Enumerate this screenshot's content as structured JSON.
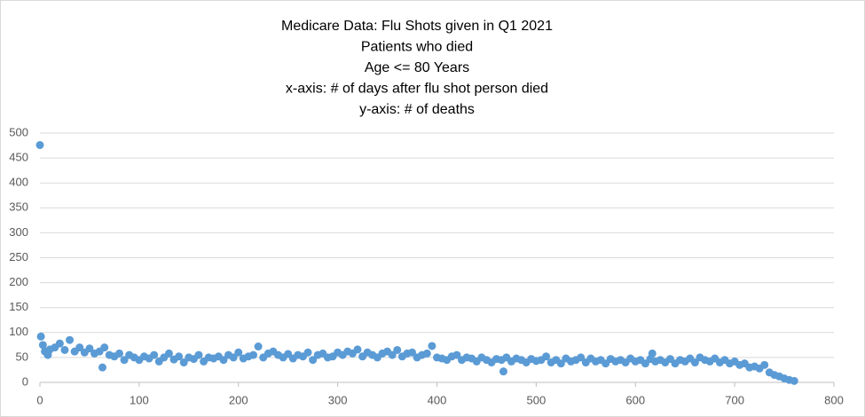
{
  "chart_data": {
    "type": "scatter",
    "title": [
      "Medicare Data:  Flu Shots given in Q1 2021",
      "Patients who died",
      "Age <= 80 Years",
      "x-axis: # of days after flu shot person died",
      "y-axis: # of deaths"
    ],
    "color": "#5b9bd5",
    "grid": true,
    "xlim": [
      0,
      800
    ],
    "xticks": [
      0,
      100,
      200,
      300,
      400,
      500,
      600,
      700,
      800
    ],
    "ylim": [
      0,
      500
    ],
    "yticks": [
      0,
      50,
      100,
      150,
      200,
      250,
      300,
      350,
      400,
      450,
      500
    ],
    "x": [
      0,
      1,
      3,
      5,
      8,
      10,
      15,
      20,
      25,
      30,
      35,
      40,
      45,
      50,
      55,
      60,
      63,
      65,
      70,
      75,
      80,
      85,
      90,
      95,
      100,
      105,
      110,
      115,
      120,
      125,
      130,
      135,
      140,
      145,
      150,
      155,
      160,
      165,
      170,
      175,
      180,
      185,
      190,
      195,
      200,
      205,
      210,
      215,
      220,
      225,
      230,
      235,
      240,
      245,
      250,
      255,
      260,
      265,
      270,
      275,
      280,
      285,
      290,
      295,
      300,
      305,
      310,
      315,
      320,
      325,
      330,
      335,
      340,
      345,
      350,
      355,
      360,
      365,
      370,
      375,
      380,
      385,
      390,
      395,
      400,
      405,
      410,
      415,
      420,
      425,
      430,
      435,
      440,
      445,
      450,
      455,
      460,
      465,
      467,
      470,
      475,
      480,
      485,
      490,
      495,
      500,
      505,
      510,
      515,
      520,
      525,
      530,
      535,
      540,
      545,
      550,
      555,
      560,
      565,
      570,
      575,
      580,
      585,
      590,
      595,
      600,
      605,
      610,
      615,
      617,
      620,
      625,
      630,
      635,
      640,
      645,
      650,
      655,
      660,
      665,
      670,
      675,
      680,
      685,
      690,
      695,
      700,
      705,
      710,
      715,
      720,
      725,
      730,
      735,
      740,
      745,
      750,
      755,
      760
    ],
    "values": [
      476,
      92,
      75,
      62,
      55,
      66,
      70,
      78,
      65,
      85,
      62,
      70,
      60,
      68,
      58,
      62,
      30,
      70,
      55,
      52,
      58,
      45,
      55,
      50,
      45,
      52,
      48,
      55,
      42,
      50,
      58,
      46,
      52,
      40,
      50,
      47,
      55,
      42,
      50,
      48,
      52,
      45,
      55,
      50,
      60,
      48,
      52,
      55,
      72,
      50,
      58,
      62,
      55,
      50,
      57,
      48,
      55,
      52,
      60,
      45,
      55,
      58,
      50,
      52,
      60,
      55,
      62,
      58,
      66,
      52,
      60,
      55,
      50,
      58,
      62,
      55,
      65,
      52,
      58,
      60,
      50,
      55,
      58,
      73,
      50,
      48,
      45,
      52,
      55,
      45,
      50,
      48,
      42,
      50,
      45,
      40,
      47,
      45,
      22,
      50,
      42,
      48,
      45,
      40,
      47,
      43,
      45,
      52,
      40,
      45,
      38,
      48,
      42,
      45,
      50,
      40,
      48,
      42,
      45,
      38,
      47,
      42,
      45,
      40,
      48,
      42,
      45,
      38,
      47,
      58,
      42,
      45,
      40,
      47,
      38,
      45,
      42,
      48,
      40,
      50,
      45,
      42,
      48,
      40,
      45,
      38,
      42,
      35,
      38,
      30,
      32,
      28,
      35,
      20,
      15,
      12,
      8,
      5,
      3
    ]
  }
}
